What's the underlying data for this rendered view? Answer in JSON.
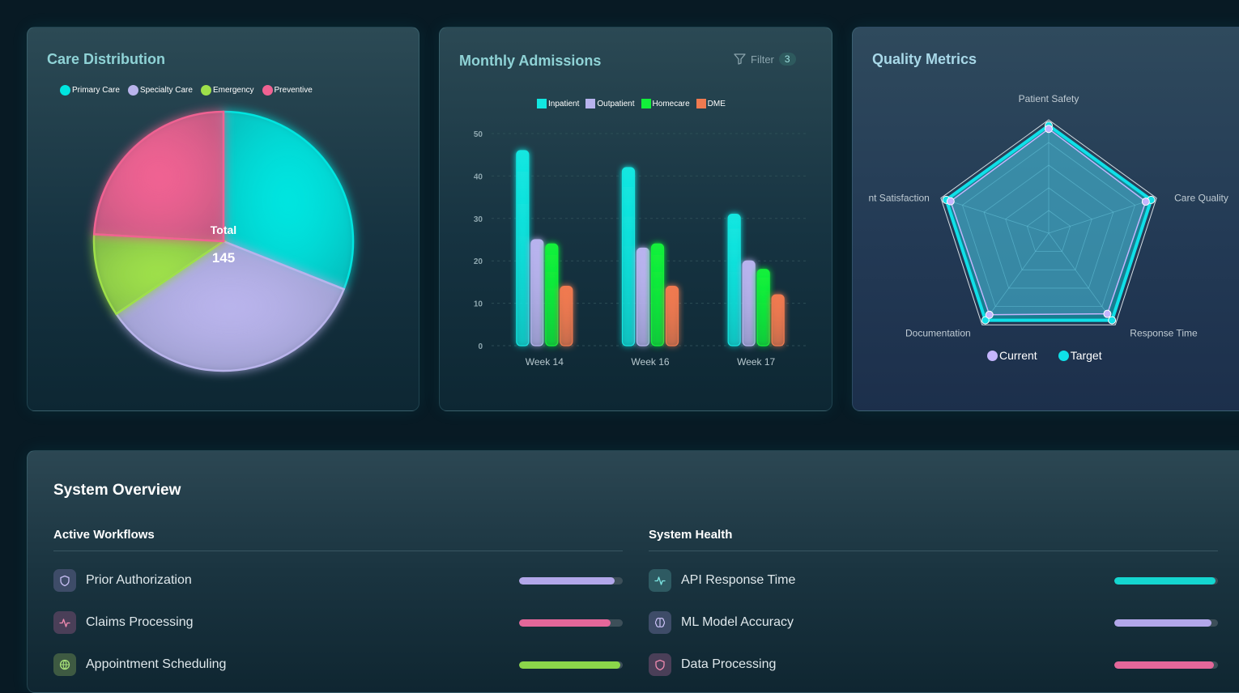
{
  "care": {
    "title": "Care Distribution",
    "center_label": "Total",
    "center_value": "145",
    "legend": [
      {
        "label": "Primary Care",
        "color": "#00e5e0"
      },
      {
        "label": "Specialty Care",
        "color": "#b9b4ec"
      },
      {
        "label": "Emergency",
        "color": "#9ee04a"
      },
      {
        "label": "Preventive",
        "color": "#f06292"
      }
    ]
  },
  "admissions": {
    "title": "Monthly Admissions",
    "filter_label": "Filter",
    "filter_count": "3",
    "filter_icon": "funnel-icon"
  },
  "quality": {
    "title": "Quality Metrics",
    "legend": [
      {
        "label": "Current",
        "color": "#c4b5fd"
      },
      {
        "label": "Target",
        "color": "#0fe0e8"
      }
    ]
  },
  "system": {
    "title": "System Overview",
    "workflows": {
      "heading": "Active Workflows",
      "items": [
        {
          "label": "Prior Authorization",
          "icon": "shield-icon",
          "level": 0.92,
          "color": "#b2a7ea",
          "icon_bg": "#3e4c68",
          "icon_color": "#c9c0f5"
        },
        {
          "label": "Claims Processing",
          "icon": "activity-icon",
          "level": 0.88,
          "color": "#e4679a",
          "icon_bg": "#4a3f58",
          "icon_color": "#f08ab0"
        },
        {
          "label": "Appointment Scheduling",
          "icon": "globe-icon",
          "level": 0.98,
          "color": "#8bd64a",
          "icon_bg": "#3e5a42",
          "icon_color": "#a9e37a"
        }
      ]
    },
    "health": {
      "heading": "System Health",
      "items": [
        {
          "label": "API Response Time",
          "icon": "activity-icon",
          "level": 0.98,
          "color": "#14d6d0",
          "icon_bg": "#2e5a62",
          "icon_color": "#7de6e3"
        },
        {
          "label": "ML Model Accuracy",
          "icon": "brain-icon",
          "level": 0.94,
          "color": "#b2a7ea",
          "icon_bg": "#3e4c68",
          "icon_color": "#c9c0f5"
        },
        {
          "label": "Data Processing",
          "icon": "shield-icon",
          "level": 0.96,
          "color": "#e4679a",
          "icon_bg": "#4a3f58",
          "icon_color": "#f08ab0"
        }
      ]
    }
  },
  "chart_data": [
    {
      "type": "pie",
      "title": "Care Distribution",
      "labels": [
        "Primary Care",
        "Specialty Care",
        "Emergency",
        "Preventive"
      ],
      "values": [
        45,
        50,
        15,
        35
      ],
      "colors": [
        "#00e5e0",
        "#b9b4ec",
        "#9ee04a",
        "#f06292"
      ]
    },
    {
      "type": "bar",
      "title": "Monthly Admissions",
      "categories": [
        "Week 14",
        "Week 16",
        "Week 17"
      ],
      "series": [
        {
          "name": "Inpatient",
          "values": [
            46,
            42,
            31
          ],
          "color": "#12e6e0"
        },
        {
          "name": "Outpatient",
          "values": [
            25,
            23,
            20
          ],
          "color": "#b8b3ee"
        },
        {
          "name": "Homecare",
          "values": [
            24,
            24,
            18
          ],
          "color": "#12f03a"
        },
        {
          "name": "DME",
          "values": [
            14,
            14,
            12
          ],
          "color": "#f07a50"
        }
      ],
      "ylim": [
        0,
        50
      ],
      "yticks": [
        0,
        10,
        20,
        30,
        40,
        50
      ],
      "grid": true,
      "legend_position": "top"
    },
    {
      "type": "radar",
      "title": "Quality Metrics",
      "axes": [
        "Patient Safety",
        "Care Quality",
        "Response Time",
        "Documentation",
        "nt Satisfaction"
      ],
      "series": [
        {
          "name": "Current",
          "values": [
            92,
            90,
            88,
            89,
            91
          ],
          "color": "#c4b5fd"
        },
        {
          "name": "Target",
          "values": [
            95,
            95,
            95,
            95,
            95
          ],
          "color": "#0fe0e8"
        }
      ],
      "max": 100,
      "rings": 5,
      "legend_position": "bottom"
    }
  ]
}
